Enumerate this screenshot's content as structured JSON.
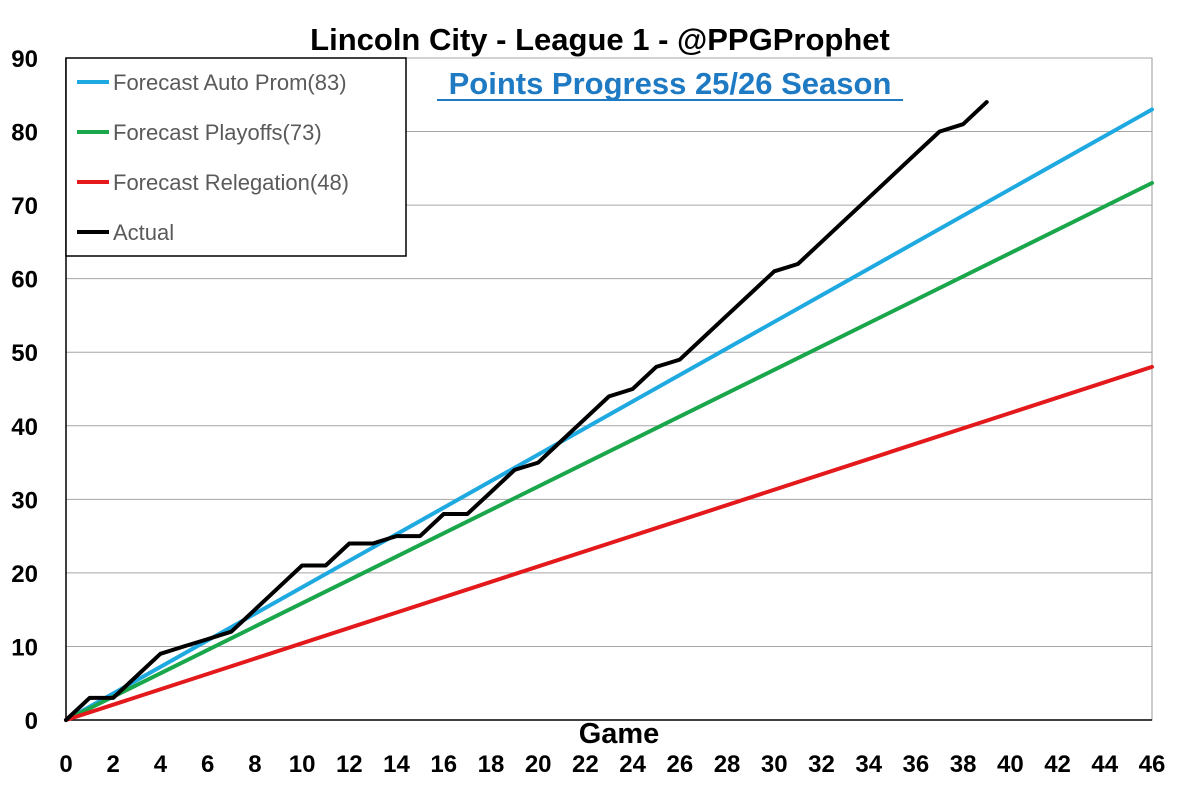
{
  "chart_data": {
    "type": "line",
    "title": "Lincoln City - League 1 - @PPGProphet",
    "subtitle": "Points Progress 25/26 Season",
    "xlabel": "Game",
    "ylabel": "",
    "xlim": [
      0,
      46
    ],
    "ylim": [
      0,
      90
    ],
    "x_ticks": [
      0,
      2,
      4,
      6,
      8,
      10,
      12,
      14,
      16,
      18,
      20,
      22,
      24,
      26,
      28,
      30,
      32,
      34,
      36,
      38,
      40,
      42,
      44,
      46
    ],
    "y_ticks": [
      0,
      10,
      20,
      30,
      40,
      50,
      60,
      70,
      80,
      90
    ],
    "grid": "horizontal",
    "legend_position": "top-left",
    "series": [
      {
        "name": "Forecast Auto Prom(83)",
        "color": "#1fa9e1",
        "x": [
          0,
          46
        ],
        "values": [
          0,
          83
        ]
      },
      {
        "name": "Forecast Playoffs(73)",
        "color": "#1aa64a",
        "x": [
          0,
          46
        ],
        "values": [
          0,
          73
        ]
      },
      {
        "name": "Forecast Relegation(48)",
        "color": "#e3191c",
        "x": [
          0,
          46
        ],
        "values": [
          0,
          48
        ]
      },
      {
        "name": "Actual",
        "color": "#000000",
        "x": [
          0,
          1,
          2,
          3,
          4,
          5,
          6,
          7,
          8,
          9,
          10,
          11,
          12,
          13,
          14,
          15,
          16,
          17,
          18,
          19,
          20,
          21,
          22,
          23,
          24,
          25,
          26,
          27,
          28,
          29,
          30,
          31,
          32,
          33,
          34,
          35,
          36,
          37,
          38,
          39
        ],
        "values": [
          0,
          3,
          3,
          6,
          9,
          10,
          11,
          12,
          15,
          18,
          21,
          21,
          24,
          24,
          25,
          25,
          28,
          28,
          31,
          34,
          35,
          38,
          41,
          44,
          45,
          48,
          49,
          52,
          55,
          58,
          61,
          62,
          65,
          68,
          71,
          74,
          77,
          80,
          81,
          84
        ]
      }
    ]
  }
}
